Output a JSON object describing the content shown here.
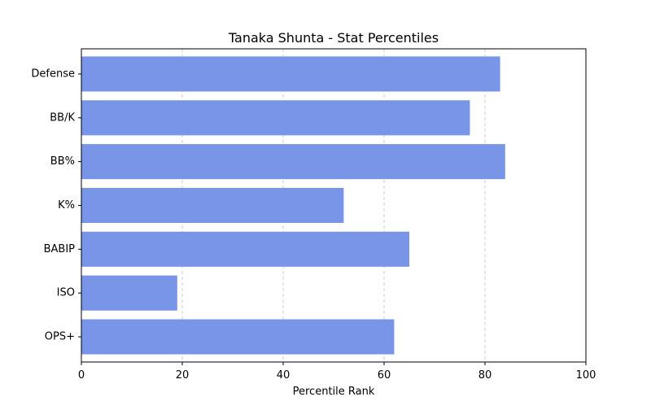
{
  "chart_data": {
    "type": "bar",
    "orientation": "horizontal",
    "title": "Tanaka Shunta - Stat Percentiles",
    "xlabel": "Percentile Rank",
    "ylabel": "",
    "categories": [
      "Defense",
      "BB/K",
      "BB%",
      "K%",
      "BABIP",
      "ISO",
      "OPS+"
    ],
    "values": [
      83,
      77,
      84,
      52,
      65,
      19,
      62
    ],
    "xlim": [
      0,
      100
    ],
    "xticks": [
      0,
      20,
      40,
      60,
      80,
      100
    ],
    "grid": "x-dashed",
    "bar_color": "#7895e8",
    "grid_color": "#cccccc"
  }
}
